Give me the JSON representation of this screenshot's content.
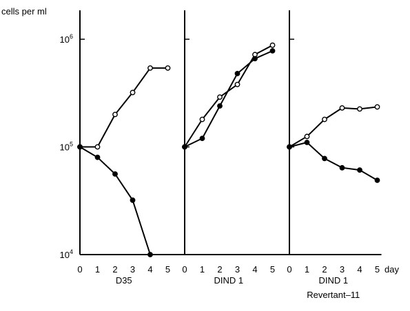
{
  "chart_data": {
    "type": "line",
    "y_unit_label": "cells per ml",
    "y_scale": "log",
    "ylim": [
      10000,
      1000000
    ],
    "y_ticks": [
      {
        "value": 10000,
        "base": "10",
        "exp": "4"
      },
      {
        "value": 100000,
        "base": "10",
        "exp": "5"
      },
      {
        "value": 1000000,
        "base": "10",
        "exp": "6"
      }
    ],
    "x_unit_label": "day",
    "x": [
      0,
      1,
      2,
      3,
      4,
      5
    ],
    "x_tick_labels": [
      "0",
      "1",
      "2",
      "3",
      "4",
      "5"
    ],
    "legend": "none",
    "grid": false,
    "panels": [
      {
        "label_lines": [
          "D35"
        ],
        "series": [
          {
            "marker": "open-circle",
            "color": "#000000",
            "x": [
              0,
              1,
              2,
              3,
              4,
              5
            ],
            "values": [
              100000,
              100000,
              200000,
              320000,
              540000,
              540000
            ]
          },
          {
            "marker": "filled-circle",
            "color": "#000000",
            "x": [
              0,
              1,
              2,
              3,
              4
            ],
            "values": [
              100000,
              80000,
              56000,
              32000,
              10000
            ]
          }
        ]
      },
      {
        "label_lines": [
          "DIND 1"
        ],
        "series": [
          {
            "marker": "open-circle",
            "color": "#000000",
            "x": [
              0,
              1,
              2,
              3,
              4,
              5
            ],
            "values": [
              100000,
              180000,
              290000,
              380000,
              720000,
              880000
            ]
          },
          {
            "marker": "filled-circle",
            "color": "#000000",
            "x": [
              0,
              1,
              2,
              3,
              4,
              5
            ],
            "values": [
              100000,
              120000,
              240000,
              480000,
              660000,
              780000
            ]
          }
        ]
      },
      {
        "label_lines": [
          "DIND 1",
          "Revertant–11"
        ],
        "series": [
          {
            "marker": "open-circle",
            "color": "#000000",
            "x": [
              0,
              1,
              2,
              3,
              4,
              5
            ],
            "values": [
              100000,
              125000,
              180000,
              230000,
              225000,
              235000
            ]
          },
          {
            "marker": "filled-circle",
            "color": "#000000",
            "x": [
              0,
              1,
              2,
              3,
              4,
              5
            ],
            "values": [
              100000,
              110000,
              78000,
              64000,
              61000,
              49000
            ]
          }
        ]
      }
    ]
  }
}
